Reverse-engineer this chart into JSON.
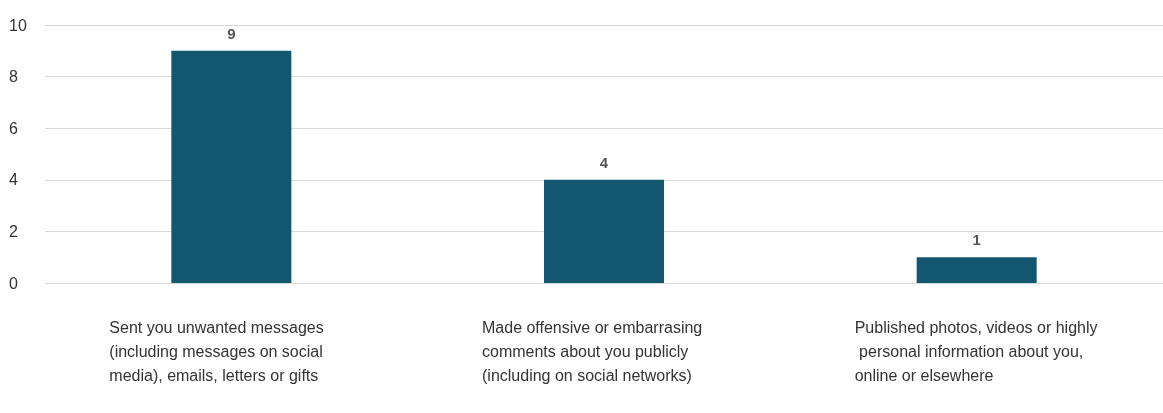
{
  "chart_data": {
    "type": "bar",
    "categories": [
      "Sent you unwanted messages (including messages on social media), emails, letters or gifts",
      "Made offensive or embarrasing comments about you publicly (including on social networks)",
      "Published photos, videos or highly personal information about you, online or elsewhere"
    ],
    "values": [
      9,
      4,
      1
    ],
    "color": "#135670",
    "ylim": [
      0,
      10
    ],
    "yticks": [
      0,
      2,
      4,
      6,
      8,
      10
    ],
    "grid": "y",
    "data_labels": true
  }
}
